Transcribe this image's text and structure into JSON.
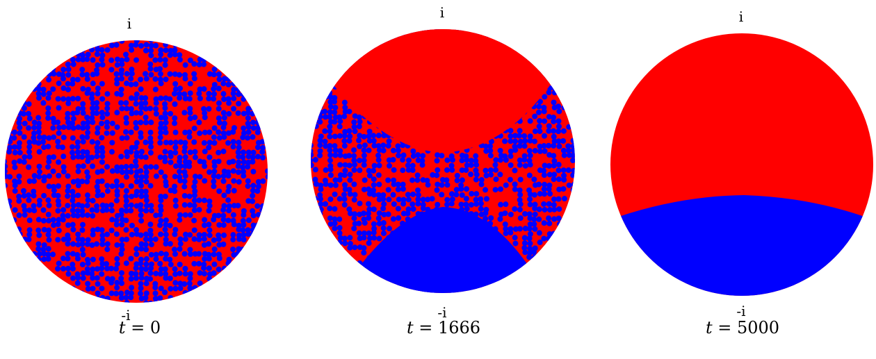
{
  "colors": {
    "red": "#ff0000",
    "blue": "#0000ff"
  },
  "panels": [
    {
      "top_label": "i",
      "bottom_label": "-i",
      "caption_var": "t",
      "caption_eq": " = ",
      "caption_value": "0",
      "state": "fully mixed"
    },
    {
      "top_label": "i",
      "bottom_label": "-i",
      "caption_var": "t",
      "caption_eq": " = ",
      "caption_value": "1666",
      "state": "red cap near i, blue cap near -i, mixed band between"
    },
    {
      "top_label": "i",
      "bottom_label": "-i",
      "caption_var": "t",
      "caption_eq": " = ",
      "caption_value": "5000",
      "state": "separated: red upper region, blue lower region"
    }
  ]
}
